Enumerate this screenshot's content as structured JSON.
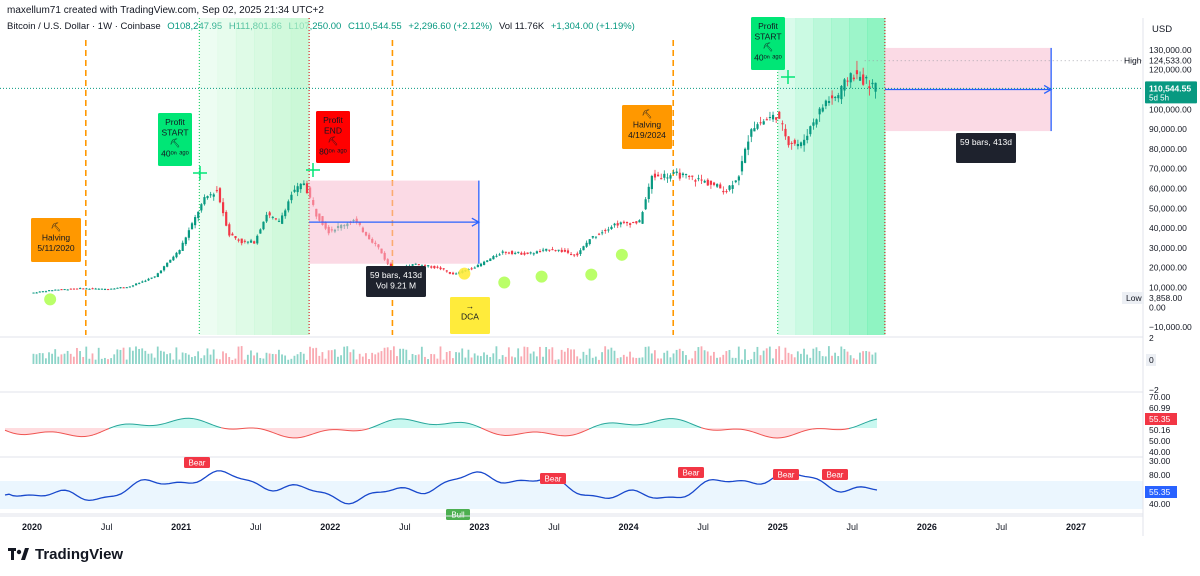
{
  "header": {
    "created_line": "maxellum71 created with TradingView.com, Sep 02, 2025 21:34 UTC+2",
    "symbol": "Bitcoin / U.S. Dollar · 1W · Coinbase",
    "open": "O108,247.95",
    "high": "H111,801.86",
    "low": "L107,250.00",
    "close": "C110,544.55",
    "change": "+2,296.60 (+2.12%)",
    "volume": "Vol 11.76K",
    "volume_change": "+1,304.00 (+1.19%)",
    "currency": "USD"
  },
  "brand": {
    "name": "TradingView"
  },
  "price_scale": {
    "ticks": [
      "130,000.00",
      "120,000.00",
      "100,000.00",
      "90,000.00",
      "80,000.00",
      "70,000.00",
      "60,000.00",
      "50,000.00",
      "40,000.00",
      "30,000.00",
      "20,000.00",
      "10,000.00",
      "0.00",
      "−10,000.00"
    ],
    "high_label": "High",
    "high_value": "124,533.00",
    "last_value": "110,544.55",
    "last_countdown": "5d 5h",
    "low_label": "Low",
    "low_value": "3,858.00"
  },
  "volume_scale": {
    "ticks": [
      "2",
      "0",
      "−2"
    ]
  },
  "rsi_scale": {
    "ticks": [
      "70.00",
      "60.99",
      "50.16",
      "50.00",
      "40.00",
      "30.00"
    ],
    "value": "55.35"
  },
  "osc_scale": {
    "ticks": [
      "80.00",
      "40.00"
    ],
    "value": "55.35"
  },
  "time_axis": [
    "2020",
    "Jul",
    "2021",
    "Jul",
    "2022",
    "Jul",
    "2023",
    "Jul",
    "2024",
    "Jul",
    "2025",
    "Jul",
    "2026",
    "Jul",
    "2027"
  ],
  "annotations": {
    "profit_start_1": {
      "line1": "Profit",
      "line2": "START",
      "age": "40ᵒⁿ ᵃᵍᵒ"
    },
    "profit_end": {
      "line1": "Profit",
      "line2": "END",
      "age": "80ᵒⁿ ᵃᵍᵒ"
    },
    "profit_start_2": {
      "line1": "Profit",
      "line2": "START",
      "age": "40ᵒⁿ ᵃᵍᵒ"
    },
    "halving_2020": {
      "line1": "Halving",
      "line2": "5/11/2020"
    },
    "halving_2024": {
      "line1": "Halving",
      "line2": "4/19/2024"
    },
    "dca": {
      "label": "DCA"
    },
    "range_1": {
      "line1": "59 bars, 413d",
      "line2": "Vol 9.21 M"
    },
    "range_2": {
      "line1": "59 bars, 413d"
    },
    "bear_labels": [
      "Bear",
      "Bear",
      "Bear",
      "Bear",
      "Bear"
    ],
    "bull_label": "Bull"
  },
  "colors": {
    "up": "#089981",
    "down": "#f23645",
    "accent_blue": "#2962ff",
    "halving": "#ff9800",
    "profit_start": "#00e676",
    "profit_end": "#ff0000",
    "dca": "#ffeb3b",
    "osc_line": "#1848cc"
  },
  "chart_data": {
    "type": "line",
    "title": "Bitcoin / U.S. Dollar · 1W · Coinbase",
    "xlabel": "",
    "ylabel": "USD",
    "x": [
      "2020-01",
      "2020-03",
      "2020-05",
      "2020-07",
      "2020-09",
      "2020-11",
      "2021-01",
      "2021-03",
      "2021-04",
      "2021-05",
      "2021-06",
      "2021-07",
      "2021-08",
      "2021-09",
      "2021-10",
      "2021-11",
      "2021-12",
      "2022-01",
      "2022-03",
      "2022-05",
      "2022-06",
      "2022-08",
      "2022-10",
      "2022-11",
      "2023-01",
      "2023-03",
      "2023-05",
      "2023-07",
      "2023-09",
      "2023-10",
      "2023-12",
      "2024-02",
      "2024-03",
      "2024-05",
      "2024-07",
      "2024-09",
      "2024-10",
      "2024-11",
      "2024-12",
      "2025-01",
      "2025-02",
      "2025-03",
      "2025-04",
      "2025-05",
      "2025-06",
      "2025-07",
      "2025-08",
      "2025-09"
    ],
    "series": [
      {
        "values": [
          7200,
          8900,
          9500,
          9200,
          10500,
          15500,
          29000,
          55000,
          59000,
          37000,
          33000,
          33000,
          47000,
          43000,
          57000,
          63000,
          47000,
          38500,
          44000,
          30000,
          19000,
          22000,
          19500,
          16500,
          21000,
          28000,
          27000,
          29500,
          26500,
          34500,
          42000,
          43000,
          66000,
          67000,
          64000,
          59000,
          67000,
          91000,
          94000,
          97000,
          84000,
          82000,
          94000,
          104000,
          107000,
          118000,
          115000,
          110544
        ]
      }
    ],
    "ylim": [
      -10000,
      130000
    ],
    "high": 124533,
    "low": 3858,
    "last": 110544.55,
    "grid": false,
    "events": [
      {
        "date": "2020-05-11",
        "name": "Halving"
      },
      {
        "date": "2024-04-19",
        "name": "Halving"
      }
    ],
    "range_measurements": [
      "59 bars, 413d",
      "59 bars, 413d"
    ]
  }
}
